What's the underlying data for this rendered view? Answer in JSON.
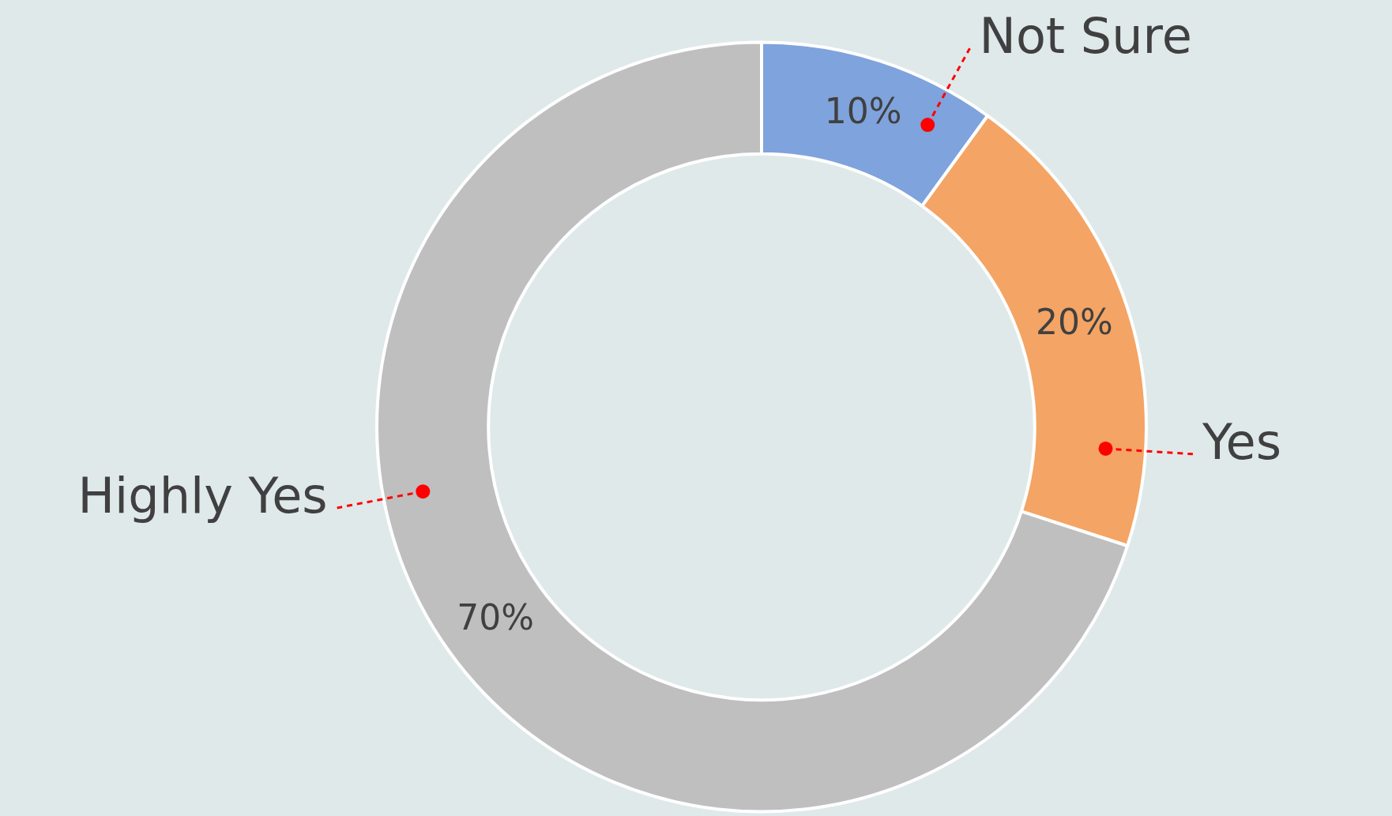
{
  "chart_data": {
    "type": "donut",
    "categories": [
      "Not Sure",
      "Yes",
      "Highly Yes"
    ],
    "values": [
      10,
      20,
      70
    ],
    "colors": [
      "#7fa3dc",
      "#f4a464",
      "#bfbfbf"
    ],
    "value_labels": [
      "10%",
      "20%",
      "70%"
    ],
    "legend": false
  }
}
